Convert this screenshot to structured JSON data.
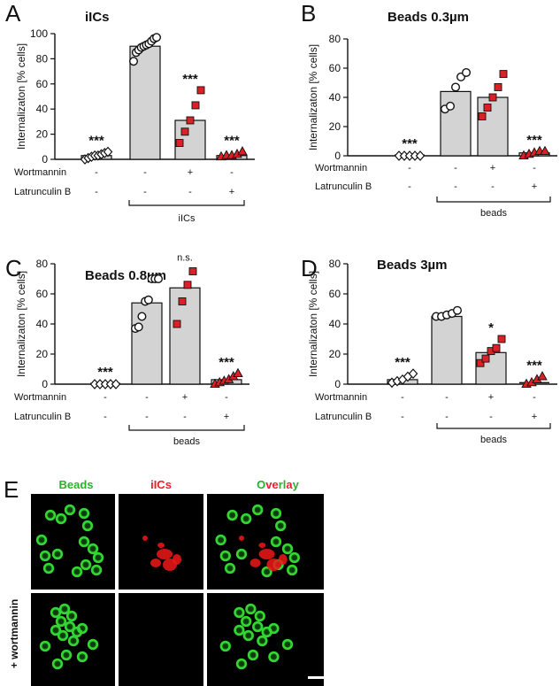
{
  "chart_data": [
    {
      "panel": "A",
      "type": "bar",
      "title": "iICs",
      "ylabel": "Internalizaton [% cells]",
      "ylim": [
        0,
        100
      ],
      "yticks": [
        "0",
        "20",
        "40",
        "60",
        "80",
        "100"
      ],
      "bars": [
        {
          "mean": 3,
          "sig": "***",
          "marker": "diamond",
          "points": [
            0,
            1,
            2,
            3,
            3,
            4,
            5,
            6
          ]
        },
        {
          "mean": 90,
          "sig": "",
          "marker": "circle",
          "points": [
            78,
            85,
            87,
            89,
            90,
            91,
            92,
            94,
            96,
            97
          ]
        },
        {
          "mean": 31,
          "sig": "***",
          "marker": "square",
          "points": [
            13,
            22,
            31,
            43,
            55
          ]
        },
        {
          "mean": 3,
          "sig": "***",
          "marker": "triangle",
          "points": [
            2,
            3,
            3,
            4,
            6
          ]
        }
      ],
      "conditions": [
        {
          "label": "Wortmannin",
          "values": [
            "-",
            "-",
            "+",
            "-"
          ]
        },
        {
          "label": "Latrunculin B",
          "values": [
            "-",
            "-",
            "-",
            "+"
          ]
        }
      ],
      "group_label": "iICs"
    },
    {
      "panel": "B",
      "type": "bar",
      "title": "Beads 0.3µm",
      "ylabel": "Internalizaton [% cells]",
      "ylim": [
        0,
        80
      ],
      "yticks": [
        "0",
        "20",
        "40",
        "60",
        "80"
      ],
      "bars": [
        {
          "mean": 0.5,
          "sig": "***",
          "marker": "diamond",
          "points": [
            0,
            0,
            0,
            0,
            0
          ]
        },
        {
          "mean": 44,
          "sig": "",
          "marker": "circle",
          "points": [
            32,
            34,
            47,
            54,
            57
          ]
        },
        {
          "mean": 40,
          "sig": "",
          "marker": "square",
          "points": [
            27,
            33,
            40,
            47,
            56
          ]
        },
        {
          "mean": 2,
          "sig": "***",
          "marker": "triangle",
          "points": [
            0,
            1,
            2,
            3,
            3
          ]
        }
      ],
      "conditions": [
        {
          "label": "Wortmannin",
          "values": [
            "-",
            "-",
            "+",
            "-"
          ]
        },
        {
          "label": "Latrunculin B",
          "values": [
            "-",
            "-",
            "-",
            "+"
          ]
        }
      ],
      "group_label": "beads"
    },
    {
      "panel": "C",
      "type": "bar",
      "title": "Beads 0.8µm",
      "ylabel": "Internalizaton [% cells]",
      "ylim": [
        0,
        80
      ],
      "yticks": [
        "0",
        "20",
        "40",
        "60",
        "80"
      ],
      "bars": [
        {
          "mean": 0.5,
          "sig": "***",
          "marker": "diamond",
          "points": [
            0,
            0,
            0,
            0,
            0
          ]
        },
        {
          "mean": 54,
          "sig": "",
          "marker": "circle",
          "points": [
            37,
            38,
            45,
            55,
            56,
            70,
            70,
            70
          ]
        },
        {
          "mean": 64,
          "sig": "n.s.",
          "marker": "square",
          "points": [
            40,
            55,
            66,
            75
          ]
        },
        {
          "mean": 3,
          "sig": "***",
          "marker": "triangle",
          "points": [
            0,
            1,
            2,
            3,
            5,
            7
          ]
        }
      ],
      "conditions": [
        {
          "label": "Wortmannin",
          "values": [
            "-",
            "-",
            "+",
            "-"
          ]
        },
        {
          "label": "Latrunculin B",
          "values": [
            "-",
            "-",
            "-",
            "+"
          ]
        }
      ],
      "group_label": "beads"
    },
    {
      "panel": "D",
      "type": "bar",
      "title": "Beads 3µm",
      "ylabel": "Internalizaton [% cells]",
      "ylim": [
        0,
        80
      ],
      "yticks": [
        "0",
        "20",
        "40",
        "60",
        "80"
      ],
      "bars": [
        {
          "mean": 3,
          "sig": "***",
          "marker": "diamond",
          "points": [
            1,
            2,
            3,
            5,
            7
          ]
        },
        {
          "mean": 45,
          "sig": "",
          "marker": "circle",
          "points": [
            45,
            45,
            46,
            47,
            49
          ]
        },
        {
          "mean": 21,
          "sig": "*",
          "marker": "square",
          "points": [
            14,
            17,
            22,
            24,
            30
          ]
        },
        {
          "mean": 1,
          "sig": "***",
          "marker": "triangle",
          "points": [
            0,
            1,
            3,
            5
          ]
        }
      ],
      "conditions": [
        {
          "label": "Wortmannin",
          "values": [
            "-",
            "-",
            "+",
            "-"
          ]
        },
        {
          "label": "Latrunculin B",
          "values": [
            "-",
            "-",
            "-",
            "+"
          ]
        }
      ],
      "group_label": "beads"
    }
  ],
  "panel_letters": [
    "A",
    "B",
    "C",
    "D",
    "E"
  ],
  "micrographs": {
    "channels": [
      {
        "label": "Beads",
        "color": "#2bb02b"
      },
      {
        "label": "iICs",
        "color": "#e8202a"
      },
      {
        "label_parts": [
          {
            "text": "O",
            "color": "#2bb02b"
          },
          {
            "text": "ve",
            "color": "#e8202a"
          },
          {
            "text": "rl",
            "color": "#2bb02b"
          },
          {
            "text": "a",
            "color": "#e8202a"
          },
          {
            "text": "y",
            "color": "#2bb02b"
          }
        ]
      }
    ],
    "row_label_bottom": "+ wortmannin"
  },
  "colors": {
    "bar_fill": "#d3d3d3",
    "red_marker": "#dd1f26",
    "bead_green": "#33d633",
    "cell_red": "#f01818",
    "image_bg": "#000000"
  }
}
